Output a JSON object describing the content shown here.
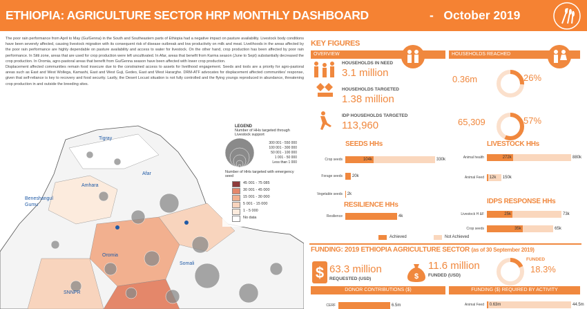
{
  "header": {
    "title": "ETHIOPIA: AGRICULTURE SECTOR HRP MONTHLY DASHBOARD",
    "date": "-   October 2019"
  },
  "narrative": [
    "The poor rain performance from April to May (Gu/Genna) in the South and Southeastern parts of Ethiopia had a negative impact on pasture availability. Livestock body conditions have been severely affected, causing livestock migration with its consequent risk of disease outbreak and low productivity on milk and meat. Livelihoods in the areas affected by the poor rain performance are highly dependable on pasture availability and access to water for livestock.  On the other hand, crop production has been affected by poor rain performance. In Sitti zone, areas that are used for crop production were left uncultivated. In Afar, areas that benefit from Karma season (June to Sept) substantially decreased the crop production. In Oromia, agro-pastoral areas that benefit from Gu/Genna season have been affected with lower crop production.",
    "Displacement affected communities remain food insecure due to the constrained access to assets for livelihood engagement. Seeds and tools are a priority for agro-pastoral areas such as East and West Wollega, Kamashi, East and West Guji, Gedeo, East and West Hararghe. DRM-ATF advocates for displacement affected communities' response, given that self-reliance is key to recovery and food security.  Lastly, the Desert Locust situation is not fully controlled and the flying youngs reproduced in abundance, threatening crop production in and outside the breeding sites."
  ],
  "map": {
    "regions": [
      "Tigray",
      "Afar",
      "Amhara",
      "Beneshangul Gumu",
      "Oromia",
      "Somali",
      "SNNPR"
    ],
    "legend": {
      "title": "LEGEND",
      "circles_title": "Number of HHs targeted through Livestock support",
      "circles": [
        "300 001 - 550 000",
        "100 001 - 300 000",
        "50 001 - 100 000",
        "1 001 - 50 000",
        "Less than 1 000"
      ],
      "fills_title": "Number of HHs targeted with emergency seed",
      "fills": [
        {
          "label": "45 001 - 75 085",
          "color": "#8e3b3b"
        },
        {
          "label": "30 001 - 45 000",
          "color": "#e4876a"
        },
        {
          "label": "15 001 - 30 000",
          "color": "#f2b08f"
        },
        {
          "label": "5 001 - 15 000",
          "color": "#f8d4bd"
        },
        {
          "label": "1 - 5 000",
          "color": "#fcebdd"
        },
        {
          "label": "No data",
          "color": "#ffffff"
        }
      ]
    }
  },
  "key_figures": {
    "title": "KEY FIGURES",
    "overview": "OVERVIEW",
    "items": [
      {
        "label": "HOUSEHOLDS IN NEED",
        "value": "3.1 million"
      },
      {
        "label": "HOUSEHOLDS TARGETED",
        "value": "1.38 million"
      },
      {
        "label": "IDP HOUSEHOLDS TARGETED",
        "value": "113,960"
      }
    ]
  },
  "reached": {
    "title": "HOUSEHOLDS  REACHED",
    "rows": [
      {
        "value": "0.36m",
        "percent": 26,
        "percent_label": "26%"
      },
      {
        "value": "65,309",
        "percent": 57,
        "percent_label": "57%"
      }
    ]
  },
  "charts": [
    {
      "title": "SEEDS HHs",
      "categories": [
        "Crop seeds",
        "Forage seeds",
        "Vegetable seeds"
      ],
      "series": [
        {
          "name": "Achieved",
          "color": "#f0883e",
          "values": [
            104000,
            20000,
            2000
          ],
          "value_labels": [
            "104k",
            "20k",
            "2k"
          ]
        },
        {
          "name": "Not Achieved",
          "color": "#fad7bd",
          "values": [
            330000,
            null,
            null
          ],
          "value_labels": [
            "330k",
            null,
            null
          ]
        }
      ]
    },
    {
      "title": "LIVESTOCK HHs",
      "categories": [
        "Animal health",
        "Animal Feed"
      ],
      "series": [
        {
          "color": "#f0883e",
          "values": [
            272000,
            12000
          ],
          "value_labels": [
            "272k",
            "12k"
          ]
        },
        {
          "color": "#fad7bd",
          "values": [
            880000,
            150000
          ],
          "value_labels": [
            "880k",
            "150k"
          ]
        }
      ]
    },
    {
      "title": "RESILIENCE HHs",
      "categories": [
        "Resilience"
      ],
      "series": [
        {
          "color": "#f0883e",
          "values": [
            4000
          ],
          "value_labels": [
            "4k"
          ]
        }
      ]
    },
    {
      "title": "IDPS RESPONSE HHs",
      "categories": [
        "Livestock H &F",
        "Crop seeds"
      ],
      "series": [
        {
          "color": "#f0883e",
          "values": [
            25000,
            35000
          ],
          "value_labels": [
            "25k",
            "35k"
          ]
        },
        {
          "color": "#fad7bd",
          "values": [
            73000,
            65000
          ],
          "value_labels": [
            "73k",
            "65k"
          ]
        }
      ]
    },
    {
      "title": "DONOR CONTRIBUTIONS ($)",
      "categories": [
        "CERF"
      ],
      "series": [
        {
          "color": "#f0883e",
          "values": [
            6.5
          ],
          "value_labels": [
            "6.5m"
          ]
        }
      ]
    },
    {
      "title": "FUNDING ($) REQUIRED BY ACTIVITY",
      "categories": [
        "Animal Feed"
      ],
      "series": [
        {
          "color": "#f0883e",
          "values": [
            0.63
          ],
          "value_labels": [
            "0.63m"
          ]
        },
        {
          "color": "#fad7bd",
          "values": [
            44.5
          ],
          "value_labels": [
            "44.5m"
          ]
        }
      ]
    }
  ],
  "funding": {
    "title": "FUNDING: 2019 ETHIOPIA AGRICULTURE SECTOR",
    "date": "(as of 30 September 2019)",
    "requested": "63.3 million",
    "requested_label": "REQUESTED (USD)",
    "funded": "11.6 million",
    "funded_label": "FUNDED (USD)",
    "funded_title": "FUNDED",
    "percent": 18.3,
    "percent_label": "18.3%"
  }
}
